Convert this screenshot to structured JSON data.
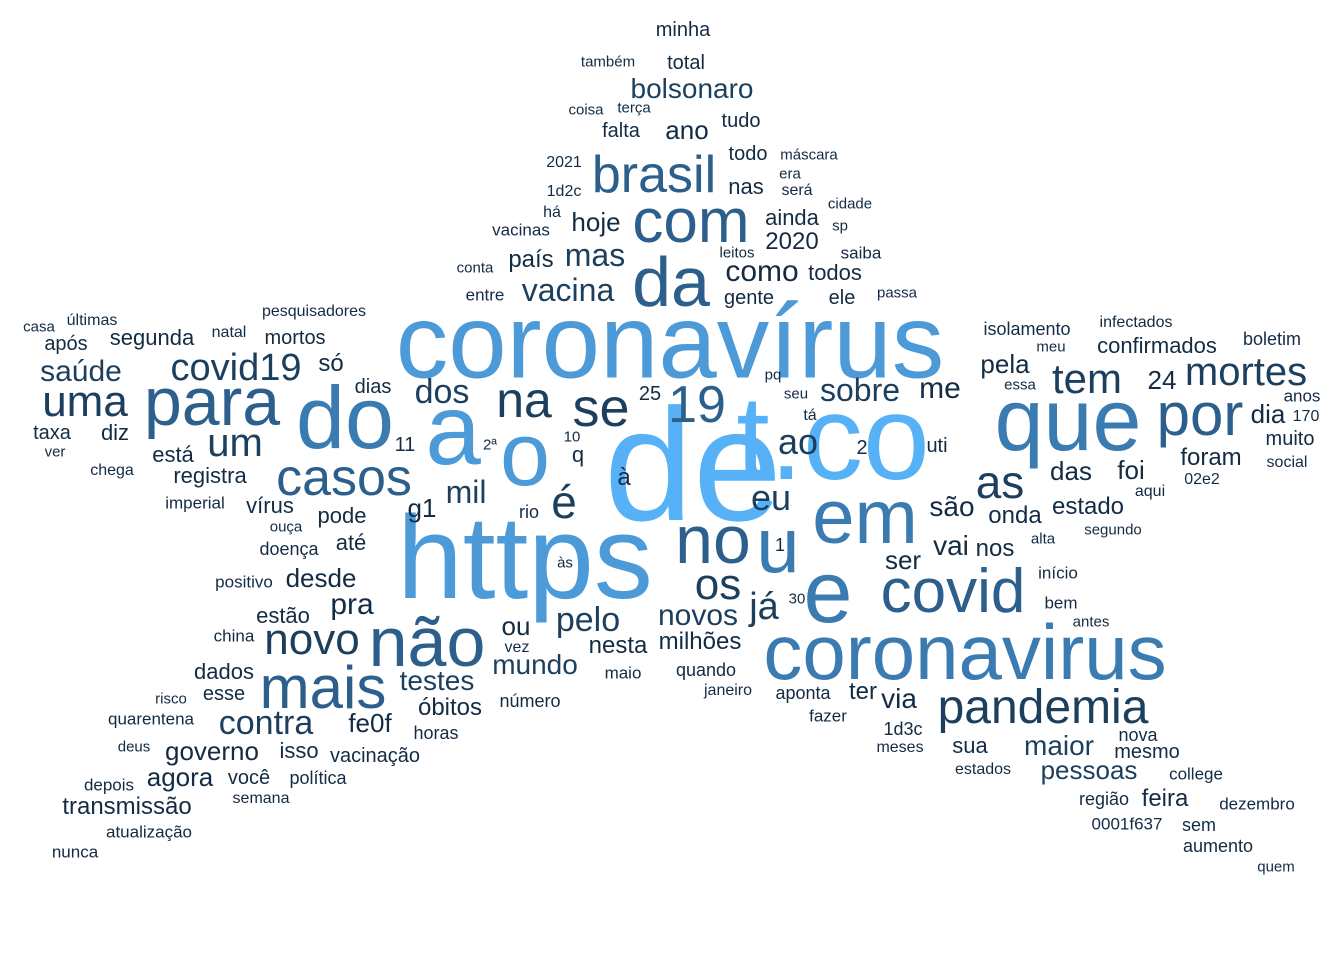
{
  "colors": {
    "background": "#ffffff",
    "palette": [
      "#132b43",
      "#1d3f5e",
      "#2c5f8c",
      "#3a7bb2",
      "#4c9ad8",
      "#56b1f7"
    ]
  },
  "words": [
    {
      "text": "de",
      "weight": 1.0
    },
    {
      "text": "t.co",
      "weight": 0.86
    },
    {
      "text": "https",
      "weight": 0.82
    },
    {
      "text": "a",
      "weight": 0.74
    },
    {
      "text": "o",
      "weight": 0.7
    },
    {
      "text": "coronavírus",
      "weight": 0.76
    },
    {
      "text": "do",
      "weight": 0.62
    },
    {
      "text": "que",
      "weight": 0.62
    },
    {
      "text": "e",
      "weight": 0.62
    },
    {
      "text": "coronavirus",
      "weight": 0.6
    },
    {
      "text": "em",
      "weight": 0.58
    },
    {
      "text": "para",
      "weight": 0.52
    },
    {
      "text": "u",
      "weight": 0.55
    },
    {
      "text": "no",
      "weight": 0.52
    },
    {
      "text": "com",
      "weight": 0.5
    },
    {
      "text": "da",
      "weight": 0.5
    },
    {
      "text": "covid",
      "weight": 0.5
    },
    {
      "text": "não",
      "weight": 0.5
    },
    {
      "text": "mais",
      "weight": 0.45
    },
    {
      "text": "por",
      "weight": 0.45
    },
    {
      "text": "brasil",
      "weight": 0.4
    },
    {
      "text": "casos",
      "weight": 0.38
    },
    {
      "text": "pandemia",
      "weight": 0.35
    },
    {
      "text": "uma",
      "weight": 0.32
    },
    {
      "text": "se",
      "weight": 0.36
    },
    {
      "text": "na",
      "weight": 0.33
    },
    {
      "text": "19",
      "weight": 0.38
    },
    {
      "text": "novo",
      "weight": 0.34
    },
    {
      "text": "tem",
      "weight": 0.3
    },
    {
      "text": "mortes",
      "weight": 0.3
    },
    {
      "text": "um",
      "weight": 0.3
    },
    {
      "text": "é",
      "weight": 0.33
    },
    {
      "text": "as",
      "weight": 0.3
    },
    {
      "text": "os",
      "weight": 0.3
    },
    {
      "text": "covid19",
      "weight": 0.27
    },
    {
      "text": "contra",
      "weight": 0.26
    },
    {
      "text": "dos",
      "weight": 0.26
    },
    {
      "text": "vacina",
      "weight": 0.24
    },
    {
      "text": "sobre",
      "weight": 0.24
    },
    {
      "text": "eu",
      "weight": 0.24
    },
    {
      "text": "pelo",
      "weight": 0.22
    },
    {
      "text": "já",
      "weight": 0.24
    },
    {
      "text": "mil",
      "weight": 0.22
    },
    {
      "text": "ao",
      "weight": 0.22
    },
    {
      "text": "novos",
      "weight": 0.21
    },
    {
      "text": "saúde",
      "weight": 0.21
    },
    {
      "text": "bolsonaro",
      "weight": 0.2
    },
    {
      "text": "mas",
      "weight": 0.21
    },
    {
      "text": "maior",
      "weight": 0.2
    },
    {
      "text": "pessoas",
      "weight": 0.2
    },
    {
      "text": "mundo",
      "weight": 0.2
    },
    {
      "text": "testes",
      "weight": 0.2
    },
    {
      "text": "governo",
      "weight": 0.19
    },
    {
      "text": "como",
      "weight": 0.19
    },
    {
      "text": "agora",
      "weight": 0.18
    },
    {
      "text": "transmissão",
      "weight": 0.18
    },
    {
      "text": "desde",
      "weight": 0.18
    },
    {
      "text": "pra",
      "weight": 0.19
    },
    {
      "text": "me",
      "weight": 0.19
    },
    {
      "text": "pela",
      "weight": 0.18
    },
    {
      "text": "24",
      "weight": 0.18
    },
    {
      "text": "dia",
      "weight": 0.18
    },
    {
      "text": "vai",
      "weight": 0.18
    },
    {
      "text": "hoje",
      "weight": 0.17
    },
    {
      "text": "ano",
      "weight": 0.17
    },
    {
      "text": "país",
      "weight": 0.17
    },
    {
      "text": "2020",
      "weight": 0.17
    },
    {
      "text": "milhões",
      "weight": 0.17
    },
    {
      "text": "nesta",
      "weight": 0.16
    },
    {
      "text": "óbitos",
      "weight": 0.16
    },
    {
      "text": "fe0f",
      "weight": 0.17
    },
    {
      "text": "via",
      "weight": 0.18
    },
    {
      "text": "feira",
      "weight": 0.17
    },
    {
      "text": "das",
      "weight": 0.17
    },
    {
      "text": "foi",
      "weight": 0.17
    },
    {
      "text": "foram",
      "weight": 0.16
    },
    {
      "text": "estado",
      "weight": 0.16
    },
    {
      "text": "onda",
      "weight": 0.16
    },
    {
      "text": "são",
      "weight": 0.17
    },
    {
      "text": "ser",
      "weight": 0.17
    },
    {
      "text": "nos",
      "weight": 0.16
    },
    {
      "text": "segunda",
      "weight": 0.15
    },
    {
      "text": "confirmados",
      "weight": 0.15
    },
    {
      "text": "muito",
      "weight": 0.14
    },
    {
      "text": "diz",
      "weight": 0.15
    },
    {
      "text": "está",
      "weight": 0.15
    },
    {
      "text": "registra",
      "weight": 0.15
    },
    {
      "text": "pode",
      "weight": 0.15
    },
    {
      "text": "até",
      "weight": 0.15
    },
    {
      "text": "estão",
      "weight": 0.15
    },
    {
      "text": "dados",
      "weight": 0.15
    },
    {
      "text": "esse",
      "weight": 0.14
    },
    {
      "text": "isso",
      "weight": 0.15
    },
    {
      "text": "ou",
      "weight": 0.17
    },
    {
      "text": "g1",
      "weight": 0.17
    },
    {
      "text": "só",
      "weight": 0.16
    },
    {
      "text": "ter",
      "weight": 0.16
    },
    {
      "text": "sua",
      "weight": 0.15
    },
    {
      "text": "mesmo",
      "weight": 0.14
    },
    {
      "text": "todos",
      "weight": 0.15
    },
    {
      "text": "ainda",
      "weight": 0.15
    },
    {
      "text": "mortos",
      "weight": 0.14
    },
    {
      "text": "após",
      "weight": 0.14
    },
    {
      "text": "taxa",
      "weight": 0.14
    },
    {
      "text": "vírus",
      "weight": 0.14
    },
    {
      "text": "total",
      "weight": 0.14
    },
    {
      "text": "nas",
      "weight": 0.14
    },
    {
      "text": "boletim",
      "weight": 0.13
    },
    {
      "text": "isolamento",
      "weight": 0.13
    },
    {
      "text": "você",
      "weight": 0.13
    },
    {
      "text": "vacinação",
      "weight": 0.13
    },
    {
      "text": "doença",
      "weight": 0.13
    },
    {
      "text": "falta",
      "weight": 0.13
    },
    {
      "text": "todo",
      "weight": 0.13
    },
    {
      "text": "gente",
      "weight": 0.13
    },
    {
      "text": "ele",
      "weight": 0.13
    },
    {
      "text": "dias",
      "weight": 0.13
    },
    {
      "text": "11",
      "weight": 0.13
    },
    {
      "text": "q",
      "weight": 0.13
    },
    {
      "text": "25",
      "weight": 0.13
    },
    {
      "text": "à",
      "weight": 0.15
    },
    {
      "text": "2",
      "weight": 0.13
    },
    {
      "text": "uti",
      "weight": 0.13
    },
    {
      "text": "aponta",
      "weight": 0.12
    },
    {
      "text": "quando",
      "weight": 0.12
    },
    {
      "text": "1d3c",
      "weight": 0.12
    },
    {
      "text": "nova",
      "weight": 0.12
    },
    {
      "text": "college",
      "weight": 0.12
    },
    {
      "text": "região",
      "weight": 0.12
    },
    {
      "text": "sem",
      "weight": 0.12
    },
    {
      "text": "aumento",
      "weight": 0.12
    },
    {
      "text": "tudo",
      "weight": 0.12
    },
    {
      "text": "entre",
      "weight": 0.11
    },
    {
      "text": "vacinas",
      "weight": 0.11
    },
    {
      "text": "minha",
      "weight": 0.12
    },
    {
      "text": "saiba",
      "weight": 0.11
    },
    {
      "text": "número",
      "weight": 0.12
    },
    {
      "text": "horas",
      "weight": 0.12
    },
    {
      "text": "1",
      "weight": 0.12
    },
    {
      "text": "atualização",
      "weight": 0.12
    },
    {
      "text": "política",
      "weight": 0.12
    },
    {
      "text": "positivo",
      "weight": 0.11
    },
    {
      "text": "china",
      "weight": 0.11
    },
    {
      "text": "quarentena",
      "weight": 0.11
    },
    {
      "text": "anos",
      "weight": 0.11
    },
    {
      "text": "dezembro",
      "weight": 0.11
    },
    {
      "text": "0001f637",
      "weight": 0.11
    },
    {
      "text": "depois",
      "weight": 0.11
    },
    {
      "text": "imperial",
      "weight": 0.11
    },
    {
      "text": "pesquisadores",
      "weight": 0.11
    },
    {
      "text": "fazer",
      "weight": 0.11
    },
    {
      "text": "início",
      "weight": 0.11
    },
    {
      "text": "bem",
      "weight": 0.11
    },
    {
      "text": "rio",
      "weight": 0.11
    },
    {
      "text": "maio",
      "weight": 0.11
    },
    {
      "text": "2021",
      "weight": 0.11
    },
    {
      "text": "1d2c",
      "weight": 0.11
    },
    {
      "text": "será",
      "weight": 0.11
    },
    {
      "text": "infectados",
      "weight": 0.11
    },
    {
      "text": "social",
      "weight": 0.1
    },
    {
      "text": "aqui",
      "weight": 0.1
    },
    {
      "text": "02e2",
      "weight": 0.1
    },
    {
      "text": "170",
      "weight": 0.1
    },
    {
      "text": "estados",
      "weight": 0.1
    },
    {
      "text": "meses",
      "weight": 0.1
    },
    {
      "text": "janeiro",
      "weight": 0.1
    },
    {
      "text": "vez",
      "weight": 0.1
    },
    {
      "text": "às",
      "weight": 0.1
    },
    {
      "text": "30",
      "weight": 0.1
    },
    {
      "text": "10",
      "weight": 0.1
    },
    {
      "text": "2ª",
      "weight": 0.1
    },
    {
      "text": "ouça",
      "weight": 0.1
    },
    {
      "text": "semana",
      "weight": 0.1
    },
    {
      "text": "deus",
      "weight": 0.1
    },
    {
      "text": "risco",
      "weight": 0.1
    },
    {
      "text": "nunca",
      "weight": 0.1
    },
    {
      "text": "chega",
      "weight": 0.1
    },
    {
      "text": "ver",
      "weight": 0.1
    },
    {
      "text": "casa",
      "weight": 0.1
    },
    {
      "text": "últimas",
      "weight": 0.1
    },
    {
      "text": "natal",
      "weight": 0.1
    },
    {
      "text": "também",
      "weight": 0.1
    },
    {
      "text": "coisa",
      "weight": 0.1
    },
    {
      "text": "terça",
      "weight": 0.1
    },
    {
      "text": "máscara",
      "weight": 0.1
    },
    {
      "text": "era",
      "weight": 0.1
    },
    {
      "text": "cidade",
      "weight": 0.1
    },
    {
      "text": "há",
      "weight": 0.1
    },
    {
      "text": "sp",
      "weight": 0.1
    },
    {
      "text": "conta",
      "weight": 0.1
    },
    {
      "text": "leitos",
      "weight": 0.1
    },
    {
      "text": "passa",
      "weight": 0.1
    },
    {
      "text": "meu",
      "weight": 0.1
    },
    {
      "text": "essa",
      "weight": 0.1
    },
    {
      "text": "pq",
      "weight": 0.1
    },
    {
      "text": "seu",
      "weight": 0.1
    },
    {
      "text": "tá",
      "weight": 0.1
    },
    {
      "text": "segundo",
      "weight": 0.1
    },
    {
      "text": "alta",
      "weight": 0.1
    },
    {
      "text": "antes",
      "weight": 0.1
    },
    {
      "text": "quem",
      "weight": 0.1
    }
  ]
}
